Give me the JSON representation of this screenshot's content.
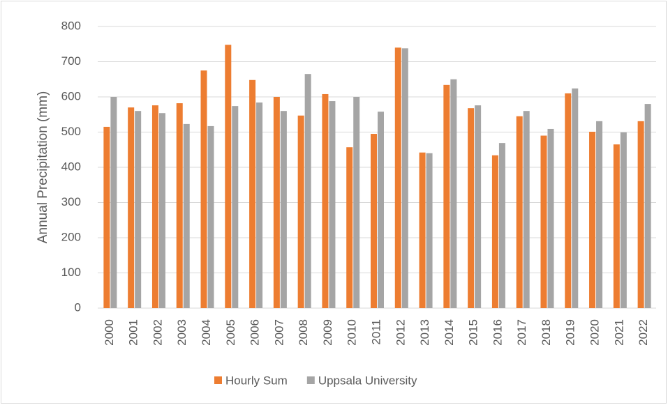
{
  "chart_data": {
    "type": "bar",
    "y_label": "Annual Precipitation (mm)",
    "categories": [
      "2000",
      "2001",
      "2002",
      "2003",
      "2004",
      "2005",
      "2006",
      "2007",
      "2008",
      "2009",
      "2010",
      "2011",
      "2012",
      "2013",
      "2014",
      "2015",
      "2016",
      "2017",
      "2018",
      "2019",
      "2020",
      "2021",
      "2022"
    ],
    "series": [
      {
        "name": "Hourly Sum",
        "color": "#ed7d31",
        "values": [
          515,
          570,
          576,
          582,
          675,
          748,
          648,
          600,
          547,
          608,
          457,
          495,
          740,
          442,
          634,
          568,
          434,
          545,
          490,
          610,
          501,
          465,
          531
        ]
      },
      {
        "name": "Uppsala University",
        "color": "#a5a5a5",
        "values": [
          600,
          560,
          554,
          523,
          517,
          574,
          584,
          560,
          665,
          588,
          600,
          558,
          738,
          440,
          650,
          576,
          469,
          560,
          509,
          624,
          531,
          499,
          580
        ]
      }
    ],
    "ylim": [
      0,
      800
    ],
    "yticks": [
      0,
      100,
      200,
      300,
      400,
      500,
      600,
      700,
      800
    ],
    "grid": true,
    "legend": "bottom"
  }
}
